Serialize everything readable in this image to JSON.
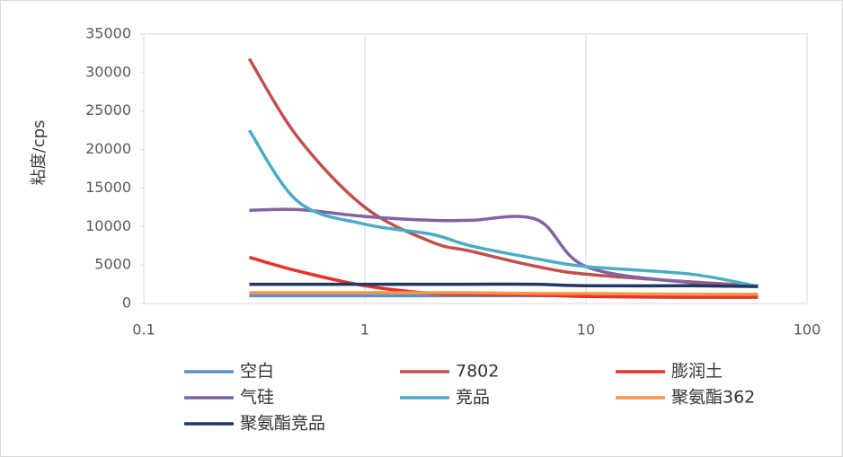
{
  "chart_data": {
    "type": "line",
    "y_label": "粘度/cps",
    "x": [
      0.3,
      0.5,
      1,
      2,
      3,
      6,
      10,
      30,
      60
    ],
    "xlim": [
      0.1,
      100
    ],
    "xticks": [
      0.1,
      1,
      10,
      100
    ],
    "xscale": "log",
    "ylim": [
      0,
      35000
    ],
    "yticks": [
      0,
      5000,
      10000,
      15000,
      20000,
      25000,
      30000,
      35000
    ],
    "grid": "x",
    "series": [
      {
        "name": "空白",
        "color": "#5b8fd0",
        "values": [
          1000,
          1000,
          1000,
          1000,
          1000,
          1000,
          1000,
          1000,
          1000
        ]
      },
      {
        "name": "7802",
        "color": "#c0504d",
        "values": [
          31800,
          21500,
          12500,
          8000,
          6800,
          4800,
          3800,
          2800,
          2300
        ]
      },
      {
        "name": "膨润土",
        "color": "#e8312a",
        "values": [
          6000,
          4200,
          2300,
          1300,
          1200,
          1100,
          900,
          800,
          800
        ]
      },
      {
        "name": "气硅",
        "color": "#8064a2",
        "values": [
          12100,
          12200,
          11300,
          10800,
          10800,
          10900,
          4800,
          2700,
          2300
        ]
      },
      {
        "name": "竞品",
        "color": "#4bacc6",
        "values": [
          22500,
          13200,
          10300,
          9000,
          7500,
          5800,
          4800,
          3800,
          2200
        ]
      },
      {
        "name": "聚氨酯362",
        "color": "#f79646",
        "values": [
          1400,
          1400,
          1400,
          1400,
          1400,
          1300,
          1300,
          1200,
          1200
        ]
      },
      {
        "name": "聚氨酯竞品",
        "color": "#1f3864",
        "values": [
          2500,
          2500,
          2500,
          2500,
          2500,
          2500,
          2300,
          2300,
          2200
        ]
      }
    ]
  }
}
